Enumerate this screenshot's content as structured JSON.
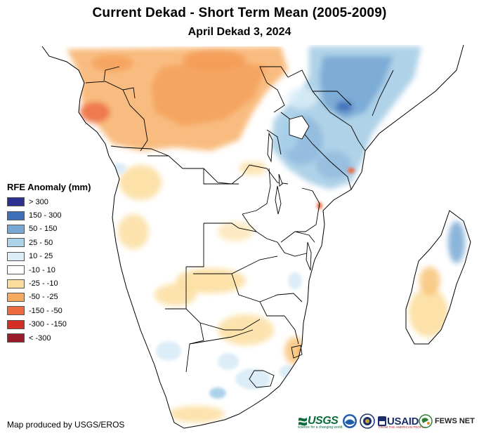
{
  "header": {
    "title": "Current Dekad - Short Term Mean (2005-2009)",
    "subtitle": "April Dekad 3, 2024"
  },
  "legend": {
    "title": "RFE Anomaly (mm)",
    "items": [
      {
        "label": "> 300",
        "color": "#2b2f8f"
      },
      {
        "label": "150 - 300",
        "color": "#3f6fb8"
      },
      {
        "label": "50 - 150",
        "color": "#78a8d4"
      },
      {
        "label": "25 - 50",
        "color": "#acd3ea"
      },
      {
        "label": "10 - 25",
        "color": "#dcedf7"
      },
      {
        "label": "-10 - 10",
        "color": "#ffffff"
      },
      {
        "label": "-25 - -10",
        "color": "#fbdc9a"
      },
      {
        "label": "-50 - -25",
        "color": "#f8aa5f"
      },
      {
        "label": "-150 - -50",
        "color": "#ee6a40"
      },
      {
        "label": "-300 - -150",
        "color": "#d42f24"
      },
      {
        "label": "< -300",
        "color": "#9b1b2a"
      }
    ]
  },
  "footer": {
    "credit": "Map produced by USGS/EROS",
    "logos": {
      "usgs": "USGS",
      "usgs_tagline": "science for a changing world",
      "noaa_icon": "noaa-logo-icon",
      "dhs_icon": "dhs-seal-icon",
      "usaid": "USAID",
      "usaid_tagline": "FROM THE AMERICAN PEOPLE",
      "fews": "FEWS NET"
    }
  },
  "map": {
    "land_color": "#ffffff",
    "border_color": "#000000",
    "lake_color": "#ffffff"
  }
}
